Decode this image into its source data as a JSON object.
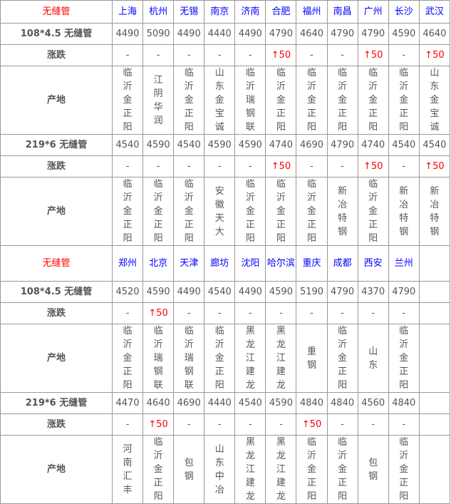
{
  "title": "无缝管",
  "blocks": [
    {
      "cities": [
        "上海",
        "杭州",
        "无锡",
        "南京",
        "济南",
        "合肥",
        "福州",
        "南昌",
        "广州",
        "长沙",
        "武汉"
      ],
      "groups": [
        {
          "spec": "108*4.5 无缝管",
          "prices": [
            "4490",
            "5090",
            "4490",
            "4440",
            "4490",
            "4790",
            "4640",
            "4790",
            "4790",
            "4590",
            "4640"
          ],
          "changes": [
            "-",
            "-",
            "-",
            "-",
            "-",
            "↑50",
            "-",
            "-",
            "↑50",
            "-",
            "↑50"
          ],
          "origins": [
            "临沂金正阳",
            "江阴华润",
            "临沂金正阳",
            "山东金宝诚",
            "临沂瑞钢联",
            "临沂金正阳",
            "临沂金正阳",
            "临沂金正阳",
            "临沂金正阳",
            "临沂金正阳",
            "山东金宝诚"
          ]
        },
        {
          "spec": "219*6 无缝管",
          "prices": [
            "4540",
            "4590",
            "4540",
            "4590",
            "4590",
            "4740",
            "4690",
            "4790",
            "4740",
            "4540",
            "4540"
          ],
          "changes": [
            "-",
            "-",
            "-",
            "-",
            "-",
            "↑50",
            "-",
            "-",
            "↑50",
            "-",
            "↑50"
          ],
          "origins": [
            "临沂金正阳",
            "临沂金正阳",
            "临沂金正阳",
            "安徽天大",
            "临沂金正阳",
            "临沂金正阳",
            "临沂金正阳",
            "新冶特钢",
            "临沂金正阳",
            "新冶特钢",
            "新冶特钢"
          ]
        }
      ]
    },
    {
      "cities": [
        "郑州",
        "北京",
        "天津",
        "廊坊",
        "沈阳",
        "哈尔滨",
        "重庆",
        "成都",
        "西安",
        "兰州",
        ""
      ],
      "groups": [
        {
          "spec": "108*4.5 无缝管",
          "prices": [
            "4520",
            "4590",
            "4490",
            "4540",
            "4490",
            "4590",
            "5190",
            "4790",
            "4370",
            "4790",
            ""
          ],
          "changes": [
            "-",
            "↑50",
            "-",
            "-",
            "-",
            "-",
            "-",
            "-",
            "-",
            "-",
            ""
          ],
          "origins": [
            "临沂金正阳",
            "临沂瑞钢联",
            "临沂瑞钢联",
            "临沂金正阳",
            "黑龙江建龙",
            "黑龙江建龙",
            "重钢",
            "临沂金正阳",
            "山东",
            "临沂金正阳",
            ""
          ]
        },
        {
          "spec": "219*6 无缝管",
          "prices": [
            "4470",
            "4640",
            "4690",
            "4440",
            "4540",
            "4590",
            "4840",
            "4840",
            "4560",
            "4840",
            ""
          ],
          "changes": [
            "-",
            "↑50",
            "-",
            "-",
            "-",
            "-",
            "↑50",
            "-",
            "-",
            "-",
            ""
          ],
          "origins": [
            "河南汇丰",
            "临沂金正阳",
            "包钢",
            "山东中冶",
            "黑龙江建龙",
            "黑龙江建龙",
            "临沂金正阳",
            "临沂金正阳",
            "包钢",
            "临沂金正阳",
            ""
          ]
        }
      ]
    }
  ],
  "row_labels": {
    "change": "涨跌",
    "origin": "产地"
  },
  "colors": {
    "header": "#ff0000",
    "city": "#0000ff",
    "up": "#ff0000",
    "flat": "#009900"
  }
}
